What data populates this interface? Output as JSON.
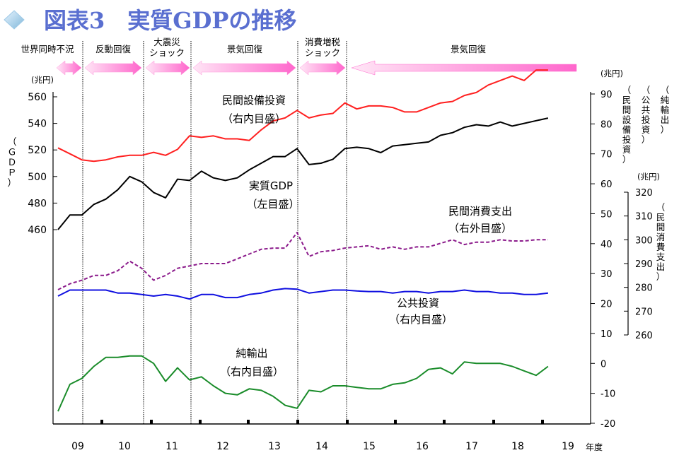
{
  "header": {
    "title": "図表3　実質GDPの推移",
    "title_color": "#5a6fd0",
    "diamond_icon": "diamond-icon"
  },
  "phases": [
    {
      "label": "世界同時不況",
      "arrow": "both"
    },
    {
      "label": "反動回復",
      "arrow": "both"
    },
    {
      "label": "大震災\nショック",
      "arrow": "both"
    },
    {
      "label": "景気回復",
      "arrow": "both"
    },
    {
      "label": "消費増税\nショック",
      "arrow": "both"
    },
    {
      "label": "景気回復",
      "arrow": "left"
    }
  ],
  "colors": {
    "capex": "#ff2020",
    "gdp": "#000000",
    "consumption": "#8b1a8b",
    "public": "#1010e0",
    "net_exports": "#1a8c2a",
    "arrow": "#ff66cc"
  },
  "chart_data": {
    "type": "line",
    "x_tick_labels": [
      "09",
      "10",
      "11",
      "12",
      "13",
      "14",
      "15",
      "16",
      "17",
      "18",
      "19"
    ],
    "x_unit_label": "年度",
    "axes": {
      "left": {
        "unit": "(兆円)",
        "label": "（ＧＤＰ）",
        "ticks": [
          460,
          480,
          500,
          520,
          540,
          560
        ]
      },
      "right_inner": {
        "unit": "(兆円)",
        "ticks": [
          -20,
          -10,
          0,
          10,
          20,
          30,
          40,
          50,
          60,
          70,
          80,
          90
        ],
        "labels": [
          "（民間設備投資）",
          "（公共投資）",
          "（純輸出）"
        ]
      },
      "right_outer": {
        "unit": "(兆円)",
        "label": "（民間消費支出）",
        "ticks": [
          260,
          270,
          280,
          290,
          300,
          310,
          320
        ]
      }
    },
    "series": [
      {
        "key": "capex",
        "name": "民間設備投資",
        "axis_note": "（右内目盛）",
        "axis": "right_inner",
        "style": "solid",
        "values": [
          72,
          70,
          68,
          67.5,
          68,
          69,
          69.5,
          69.5,
          70.5,
          69.5,
          71.5,
          76,
          75.5,
          76,
          75,
          75,
          74.5,
          78,
          81,
          82,
          84.5,
          82,
          83,
          83.5,
          87,
          85,
          86,
          86,
          85.5,
          84,
          84,
          85.5,
          87,
          87.5,
          89.5,
          90.5,
          93,
          94.5,
          96,
          94.5,
          98,
          98
        ]
      },
      {
        "key": "gdp",
        "name": "実質GDP",
        "axis_note": "（左目盛）",
        "axis": "left",
        "style": "solid",
        "values": [
          460,
          471,
          471,
          479,
          483,
          490,
          500,
          496,
          488,
          484,
          498,
          497,
          504,
          499,
          497,
          499,
          505,
          510,
          515,
          515,
          521,
          509,
          510,
          513,
          521,
          522,
          521,
          518,
          523,
          524,
          525,
          526,
          531,
          533,
          537,
          539,
          538,
          541,
          538,
          540,
          542,
          544
        ]
      },
      {
        "key": "consumption",
        "name": "民間消費支出",
        "axis_note": "（右外目盛）",
        "axis": "right_outer",
        "style": "dashed",
        "values": [
          279,
          281.5,
          283,
          285,
          285,
          287,
          291,
          288,
          283,
          285,
          288,
          289,
          290,
          290,
          290,
          292,
          294,
          296,
          296.5,
          296.5,
          303,
          293,
          295,
          295.5,
          296.5,
          297,
          297.5,
          296,
          297,
          296,
          297,
          297,
          298.5,
          300,
          298,
          299,
          299,
          300,
          299.5,
          299.5,
          300,
          300
        ]
      },
      {
        "key": "public",
        "name": "公共投資",
        "axis_note": "（右内目盛）",
        "axis": "right_inner",
        "style": "solid",
        "values": [
          22.5,
          24.5,
          24.5,
          24.5,
          24.5,
          23.5,
          23.5,
          23,
          22.5,
          23,
          22.5,
          21.5,
          23,
          23,
          22,
          22,
          23,
          23.5,
          24.5,
          25,
          24.8,
          23.5,
          24,
          24.5,
          24.5,
          24.2,
          24,
          24,
          23.5,
          24,
          24,
          23.5,
          24,
          24,
          24.5,
          24,
          24,
          23.5,
          23.5,
          23,
          23,
          23.5
        ]
      },
      {
        "key": "net_exports",
        "name": "純輸出",
        "axis_note": "（右内目盛）",
        "axis": "right_inner",
        "style": "solid",
        "values": [
          -16,
          -7,
          -5,
          -1,
          2,
          2,
          2.5,
          2.5,
          0,
          -6,
          -1.5,
          -5.5,
          -4.5,
          -7.5,
          -10,
          -10.5,
          -8.5,
          -9,
          -11,
          -14,
          -15,
          -9,
          -9.5,
          -7.5,
          -7.5,
          -8,
          -8.5,
          -8.5,
          -7,
          -6.5,
          -5,
          -2,
          -1.5,
          -3.5,
          0.5,
          0,
          0,
          0,
          -1,
          -2.5,
          -4,
          -1
        ]
      }
    ],
    "annotations": [
      {
        "series": "capex",
        "text": "民間設備投資",
        "note": "（右内目盛）"
      },
      {
        "series": "gdp",
        "text": "実質GDP",
        "note": "（左目盛）"
      },
      {
        "series": "consumption",
        "text": "民間消費支出",
        "note": "（右外目盛）"
      },
      {
        "series": "public",
        "text": "公共投資",
        "note": "（右内目盛）"
      },
      {
        "series": "net_exports",
        "text": "純輸出",
        "note": "（右内目盛）"
      }
    ]
  }
}
